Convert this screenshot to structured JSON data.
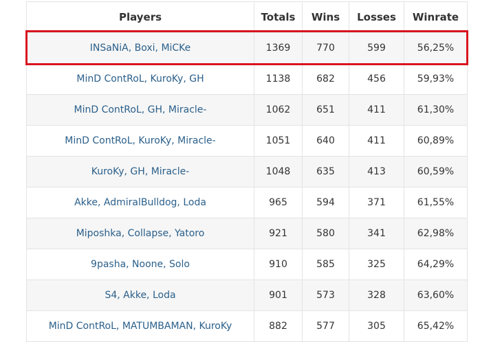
{
  "table": {
    "headers": [
      "Players",
      "Totals",
      "Wins",
      "Losses",
      "Winrate"
    ],
    "rows": [
      {
        "players": "INSaNiA, Boxi, MiCKe",
        "totals": "1369",
        "wins": "770",
        "losses": "599",
        "winrate": "56,25%"
      },
      {
        "players": "MinD ContRoL, KuroKy, GH",
        "totals": "1138",
        "wins": "682",
        "losses": "456",
        "winrate": "59,93%"
      },
      {
        "players": "MinD ContRoL, GH, Miracle-",
        "totals": "1062",
        "wins": "651",
        "losses": "411",
        "winrate": "61,30%"
      },
      {
        "players": "MinD ContRoL, KuroKy, Miracle-",
        "totals": "1051",
        "wins": "640",
        "losses": "411",
        "winrate": "60,89%"
      },
      {
        "players": "KuroKy, GH, Miracle-",
        "totals": "1048",
        "wins": "635",
        "losses": "413",
        "winrate": "60,59%"
      },
      {
        "players": "Akke, AdmiralBulldog, Loda",
        "totals": "965",
        "wins": "594",
        "losses": "371",
        "winrate": "61,55%"
      },
      {
        "players": "Miposhka, Collapse, Yatoro",
        "totals": "921",
        "wins": "580",
        "losses": "341",
        "winrate": "62,98%"
      },
      {
        "players": "9pasha, Noone, Solo",
        "totals": "910",
        "wins": "585",
        "losses": "325",
        "winrate": "64,29%"
      },
      {
        "players": "S4, Akke, Loda",
        "totals": "901",
        "wins": "573",
        "losses": "328",
        "winrate": "63,60%"
      },
      {
        "players": "MinD ContRoL, MATUMBAMAN, KuroKy",
        "totals": "882",
        "wins": "577",
        "losses": "305",
        "winrate": "65,42%"
      }
    ]
  },
  "highlight": {
    "row_index": 0,
    "color": "#d9141e"
  },
  "colors": {
    "player_text": "#2a5f8a",
    "row_stripe": "#f6f6f6",
    "border": "#e3e3e3"
  }
}
